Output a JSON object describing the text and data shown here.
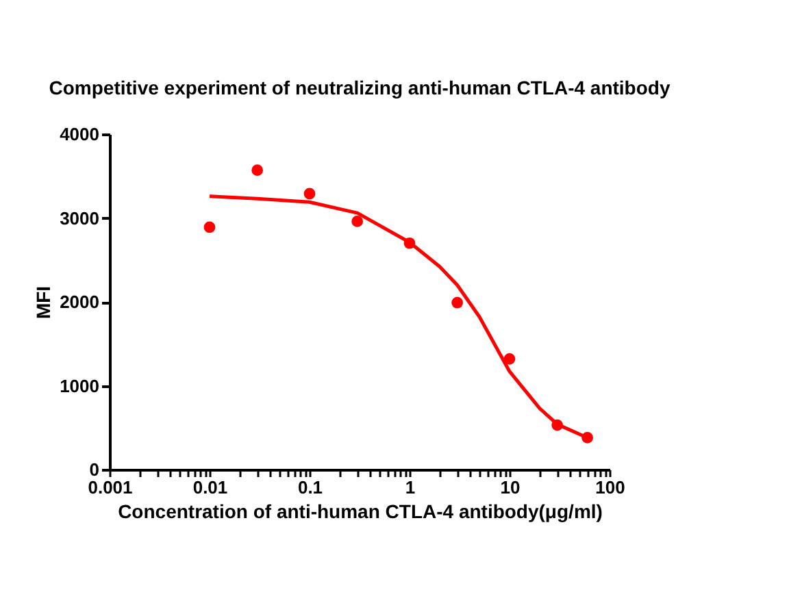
{
  "chart_data": {
    "type": "scatter",
    "title": "Competitive experiment of neutralizing anti-human CTLA-4 antibody",
    "xlabel": "Concentration of anti-human CTLA-4 antibody(μg/ml)",
    "ylabel": "MFI",
    "log": "x",
    "grid": false,
    "xlim": [
      0.001,
      100
    ],
    "xticks": [
      {
        "value": 0.001,
        "label": "0.001"
      },
      {
        "value": 0.002,
        "label": null
      },
      {
        "value": 0.003,
        "label": null
      },
      {
        "value": 0.004,
        "label": null
      },
      {
        "value": 0.005,
        "label": null
      },
      {
        "value": 0.006,
        "label": null
      },
      {
        "value": 0.007,
        "label": null
      },
      {
        "value": 0.008,
        "label": null
      },
      {
        "value": 0.009,
        "label": null
      },
      {
        "value": 0.01,
        "label": "0.01"
      },
      {
        "value": 0.02,
        "label": null
      },
      {
        "value": 0.03,
        "label": null
      },
      {
        "value": 0.04,
        "label": null
      },
      {
        "value": 0.05,
        "label": null
      },
      {
        "value": 0.06,
        "label": null
      },
      {
        "value": 0.07,
        "label": null
      },
      {
        "value": 0.08,
        "label": null
      },
      {
        "value": 0.09,
        "label": null
      },
      {
        "value": 0.1,
        "label": "0.1"
      },
      {
        "value": 0.2,
        "label": null
      },
      {
        "value": 0.3,
        "label": null
      },
      {
        "value": 0.4,
        "label": null
      },
      {
        "value": 0.5,
        "label": null
      },
      {
        "value": 0.6,
        "label": null
      },
      {
        "value": 0.7,
        "label": null
      },
      {
        "value": 0.8,
        "label": null
      },
      {
        "value": 0.9,
        "label": null
      },
      {
        "value": 1,
        "label": "1"
      },
      {
        "value": 2,
        "label": null
      },
      {
        "value": 3,
        "label": null
      },
      {
        "value": 4,
        "label": null
      },
      {
        "value": 5,
        "label": null
      },
      {
        "value": 6,
        "label": null
      },
      {
        "value": 7,
        "label": null
      },
      {
        "value": 8,
        "label": null
      },
      {
        "value": 9,
        "label": null
      },
      {
        "value": 10,
        "label": "10"
      },
      {
        "value": 20,
        "label": null
      },
      {
        "value": 30,
        "label": null
      },
      {
        "value": 40,
        "label": null
      },
      {
        "value": 50,
        "label": null
      },
      {
        "value": 60,
        "label": null
      },
      {
        "value": 70,
        "label": null
      },
      {
        "value": 80,
        "label": null
      },
      {
        "value": 90,
        "label": null
      },
      {
        "value": 100,
        "label": "100"
      }
    ],
    "ylim": [
      0,
      4000
    ],
    "yticks": [
      0,
      1000,
      2000,
      3000,
      4000
    ],
    "series": [
      {
        "marker": "circle",
        "color": "#ff0000",
        "x": [
          0.01,
          0.03,
          0.1,
          0.3,
          1,
          3,
          10,
          30,
          60
        ],
        "values": [
          2890,
          3570,
          3290,
          2960,
          2700,
          1990,
          1320,
          530,
          380
        ]
      },
      {
        "type": "line",
        "marker": "none",
        "line_style": "solid",
        "color": "#ff0000",
        "x": [
          0.01,
          0.03,
          0.1,
          0.3,
          1,
          2,
          3,
          5,
          10,
          20,
          30,
          60
        ],
        "values": [
          3260,
          3230,
          3190,
          3060,
          2710,
          2420,
          2200,
          1820,
          1170,
          730,
          540,
          380
        ]
      }
    ]
  }
}
